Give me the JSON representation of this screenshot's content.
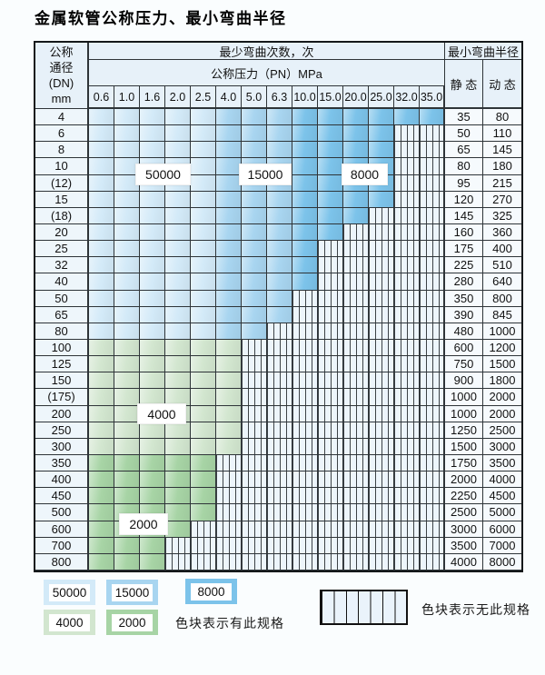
{
  "title": "金属软管公称压力、最小弯曲半径",
  "table": {
    "corner_header": [
      "公称",
      "通径",
      "(DN)",
      "mm"
    ],
    "bend_cycles_header": "最少弯曲次数，次",
    "radius_header": "最小弯曲半径",
    "pressure_header": "公称压力（PN）MPa",
    "static_header": "静 态",
    "dynamic_header": "动 态",
    "pressure_columns": [
      "0.6",
      "1.0",
      "1.6",
      "2.0",
      "2.5",
      "4.0",
      "5.0",
      "6.3",
      "10.0",
      "15.0",
      "20.0",
      "25.0",
      "32.0",
      "35.0"
    ],
    "blue_zone_col_groups": {
      "b1": [
        0,
        4
      ],
      "b2": [
        5,
        7
      ],
      "b3": [
        8,
        13
      ]
    },
    "rows": [
      {
        "dn": "4",
        "zone": "blue",
        "colored_cols": 14,
        "static": "35",
        "dynamic": "80"
      },
      {
        "dn": "6",
        "zone": "blue",
        "colored_cols": 12,
        "static": "50",
        "dynamic": "110"
      },
      {
        "dn": "8",
        "zone": "blue",
        "colored_cols": 12,
        "static": "65",
        "dynamic": "145"
      },
      {
        "dn": "10",
        "zone": "blue",
        "colored_cols": 12,
        "static": "80",
        "dynamic": "180"
      },
      {
        "dn": "(12)",
        "zone": "blue",
        "colored_cols": 12,
        "static": "95",
        "dynamic": "215"
      },
      {
        "dn": "15",
        "zone": "blue",
        "colored_cols": 12,
        "static": "120",
        "dynamic": "270"
      },
      {
        "dn": "(18)",
        "zone": "blue",
        "colored_cols": 11,
        "static": "145",
        "dynamic": "325"
      },
      {
        "dn": "20",
        "zone": "blue",
        "colored_cols": 10,
        "static": "160",
        "dynamic": "360"
      },
      {
        "dn": "25",
        "zone": "blue",
        "colored_cols": 9,
        "static": "175",
        "dynamic": "400"
      },
      {
        "dn": "32",
        "zone": "blue",
        "colored_cols": 9,
        "static": "225",
        "dynamic": "510"
      },
      {
        "dn": "40",
        "zone": "blue",
        "colored_cols": 9,
        "static": "280",
        "dynamic": "640"
      },
      {
        "dn": "50",
        "zone": "blue",
        "colored_cols": 8,
        "static": "350",
        "dynamic": "800"
      },
      {
        "dn": "65",
        "zone": "blue",
        "colored_cols": 8,
        "static": "390",
        "dynamic": "845"
      },
      {
        "dn": "80",
        "zone": "blue",
        "colored_cols": 7,
        "static": "480",
        "dynamic": "1000"
      },
      {
        "dn": "100",
        "zone": "g1",
        "colored_cols": 6,
        "static": "600",
        "dynamic": "1200"
      },
      {
        "dn": "125",
        "zone": "g1",
        "colored_cols": 6,
        "static": "750",
        "dynamic": "1500"
      },
      {
        "dn": "150",
        "zone": "g1",
        "colored_cols": 6,
        "static": "900",
        "dynamic": "1800"
      },
      {
        "dn": "(175)",
        "zone": "g1",
        "colored_cols": 6,
        "static": "1000",
        "dynamic": "2000"
      },
      {
        "dn": "200",
        "zone": "g1",
        "colored_cols": 6,
        "static": "1000",
        "dynamic": "2000"
      },
      {
        "dn": "250",
        "zone": "g1",
        "colored_cols": 6,
        "static": "1250",
        "dynamic": "2500"
      },
      {
        "dn": "300",
        "zone": "g1",
        "colored_cols": 6,
        "static": "1500",
        "dynamic": "3000"
      },
      {
        "dn": "350",
        "zone": "g2",
        "colored_cols": 5,
        "static": "1750",
        "dynamic": "3500"
      },
      {
        "dn": "400",
        "zone": "g2",
        "colored_cols": 5,
        "static": "2000",
        "dynamic": "4000"
      },
      {
        "dn": "450",
        "zone": "g2",
        "colored_cols": 5,
        "static": "2250",
        "dynamic": "4500"
      },
      {
        "dn": "500",
        "zone": "g2",
        "colored_cols": 5,
        "static": "2500",
        "dynamic": "5000"
      },
      {
        "dn": "600",
        "zone": "g2",
        "colored_cols": 4,
        "static": "3000",
        "dynamic": "6000"
      },
      {
        "dn": "700",
        "zone": "g2",
        "colored_cols": 3,
        "static": "3500",
        "dynamic": "7000"
      },
      {
        "dn": "800",
        "zone": "g2",
        "colored_cols": 3,
        "static": "4000",
        "dynamic": "8000"
      }
    ]
  },
  "legend": {
    "swatches": [
      {
        "label": "50000",
        "color": "#d3eaf8"
      },
      {
        "label": "15000",
        "color": "#a8d5f0"
      },
      {
        "label": "8000",
        "color": "#7cc3ea"
      },
      {
        "label": "4000",
        "color": "#d2e6cf"
      },
      {
        "label": "2000",
        "color": "#a7d4a5"
      }
    ],
    "has_spec_text": "色块表示有此规格",
    "no_spec_text": "色块表示无此规格"
  }
}
